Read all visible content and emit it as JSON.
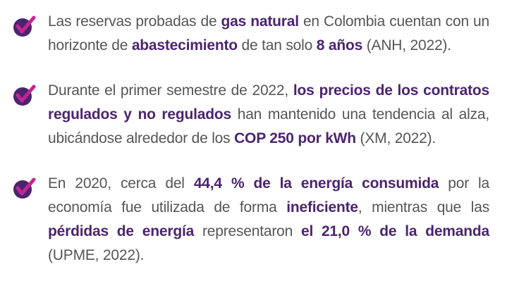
{
  "items": [
    {
      "parts": [
        {
          "text": "Las reservas probadas de ",
          "emphasis": false
        },
        {
          "text": "gas natural",
          "emphasis": true
        },
        {
          "text": " en Colombia cuentan con un horizonte de ",
          "emphasis": false
        },
        {
          "text": "abastecimiento",
          "emphasis": true
        },
        {
          "text": " de tan solo ",
          "emphasis": false
        },
        {
          "text": "8 años",
          "emphasis": true
        },
        {
          "text": " (ANH, 2022).",
          "emphasis": false
        }
      ]
    },
    {
      "parts": [
        {
          "text": "Durante el primer semestre de 2022, ",
          "emphasis": false
        },
        {
          "text": "los precios de los contra­tos regulados y no regulados",
          "emphasis": true
        },
        {
          "text": " han mantenido una tendencia al alza, ubicándose alrededor de los ",
          "emphasis": false
        },
        {
          "text": "COP 250 por kWh",
          "emphasis": true
        },
        {
          "text": " (XM, 2022).",
          "emphasis": false
        }
      ]
    },
    {
      "parts": [
        {
          "text": "En 2020, cerca del ",
          "emphasis": false
        },
        {
          "text": "44,4 % de la energía consumida",
          "emphasis": true
        },
        {
          "text": " por la economía fue utilizada de forma ",
          "emphasis": false
        },
        {
          "text": "ineficiente",
          "emphasis": true
        },
        {
          "text": ", mientras que las ",
          "emphasis": false
        },
        {
          "text": "pérdidas de energía",
          "emphasis": true
        },
        {
          "text": " representaron ",
          "emphasis": false
        },
        {
          "text": "el 21,0 % de la demanda",
          "emphasis": true
        },
        {
          "text": " (UPME, 2022).",
          "emphasis": false
        }
      ]
    }
  ]
}
